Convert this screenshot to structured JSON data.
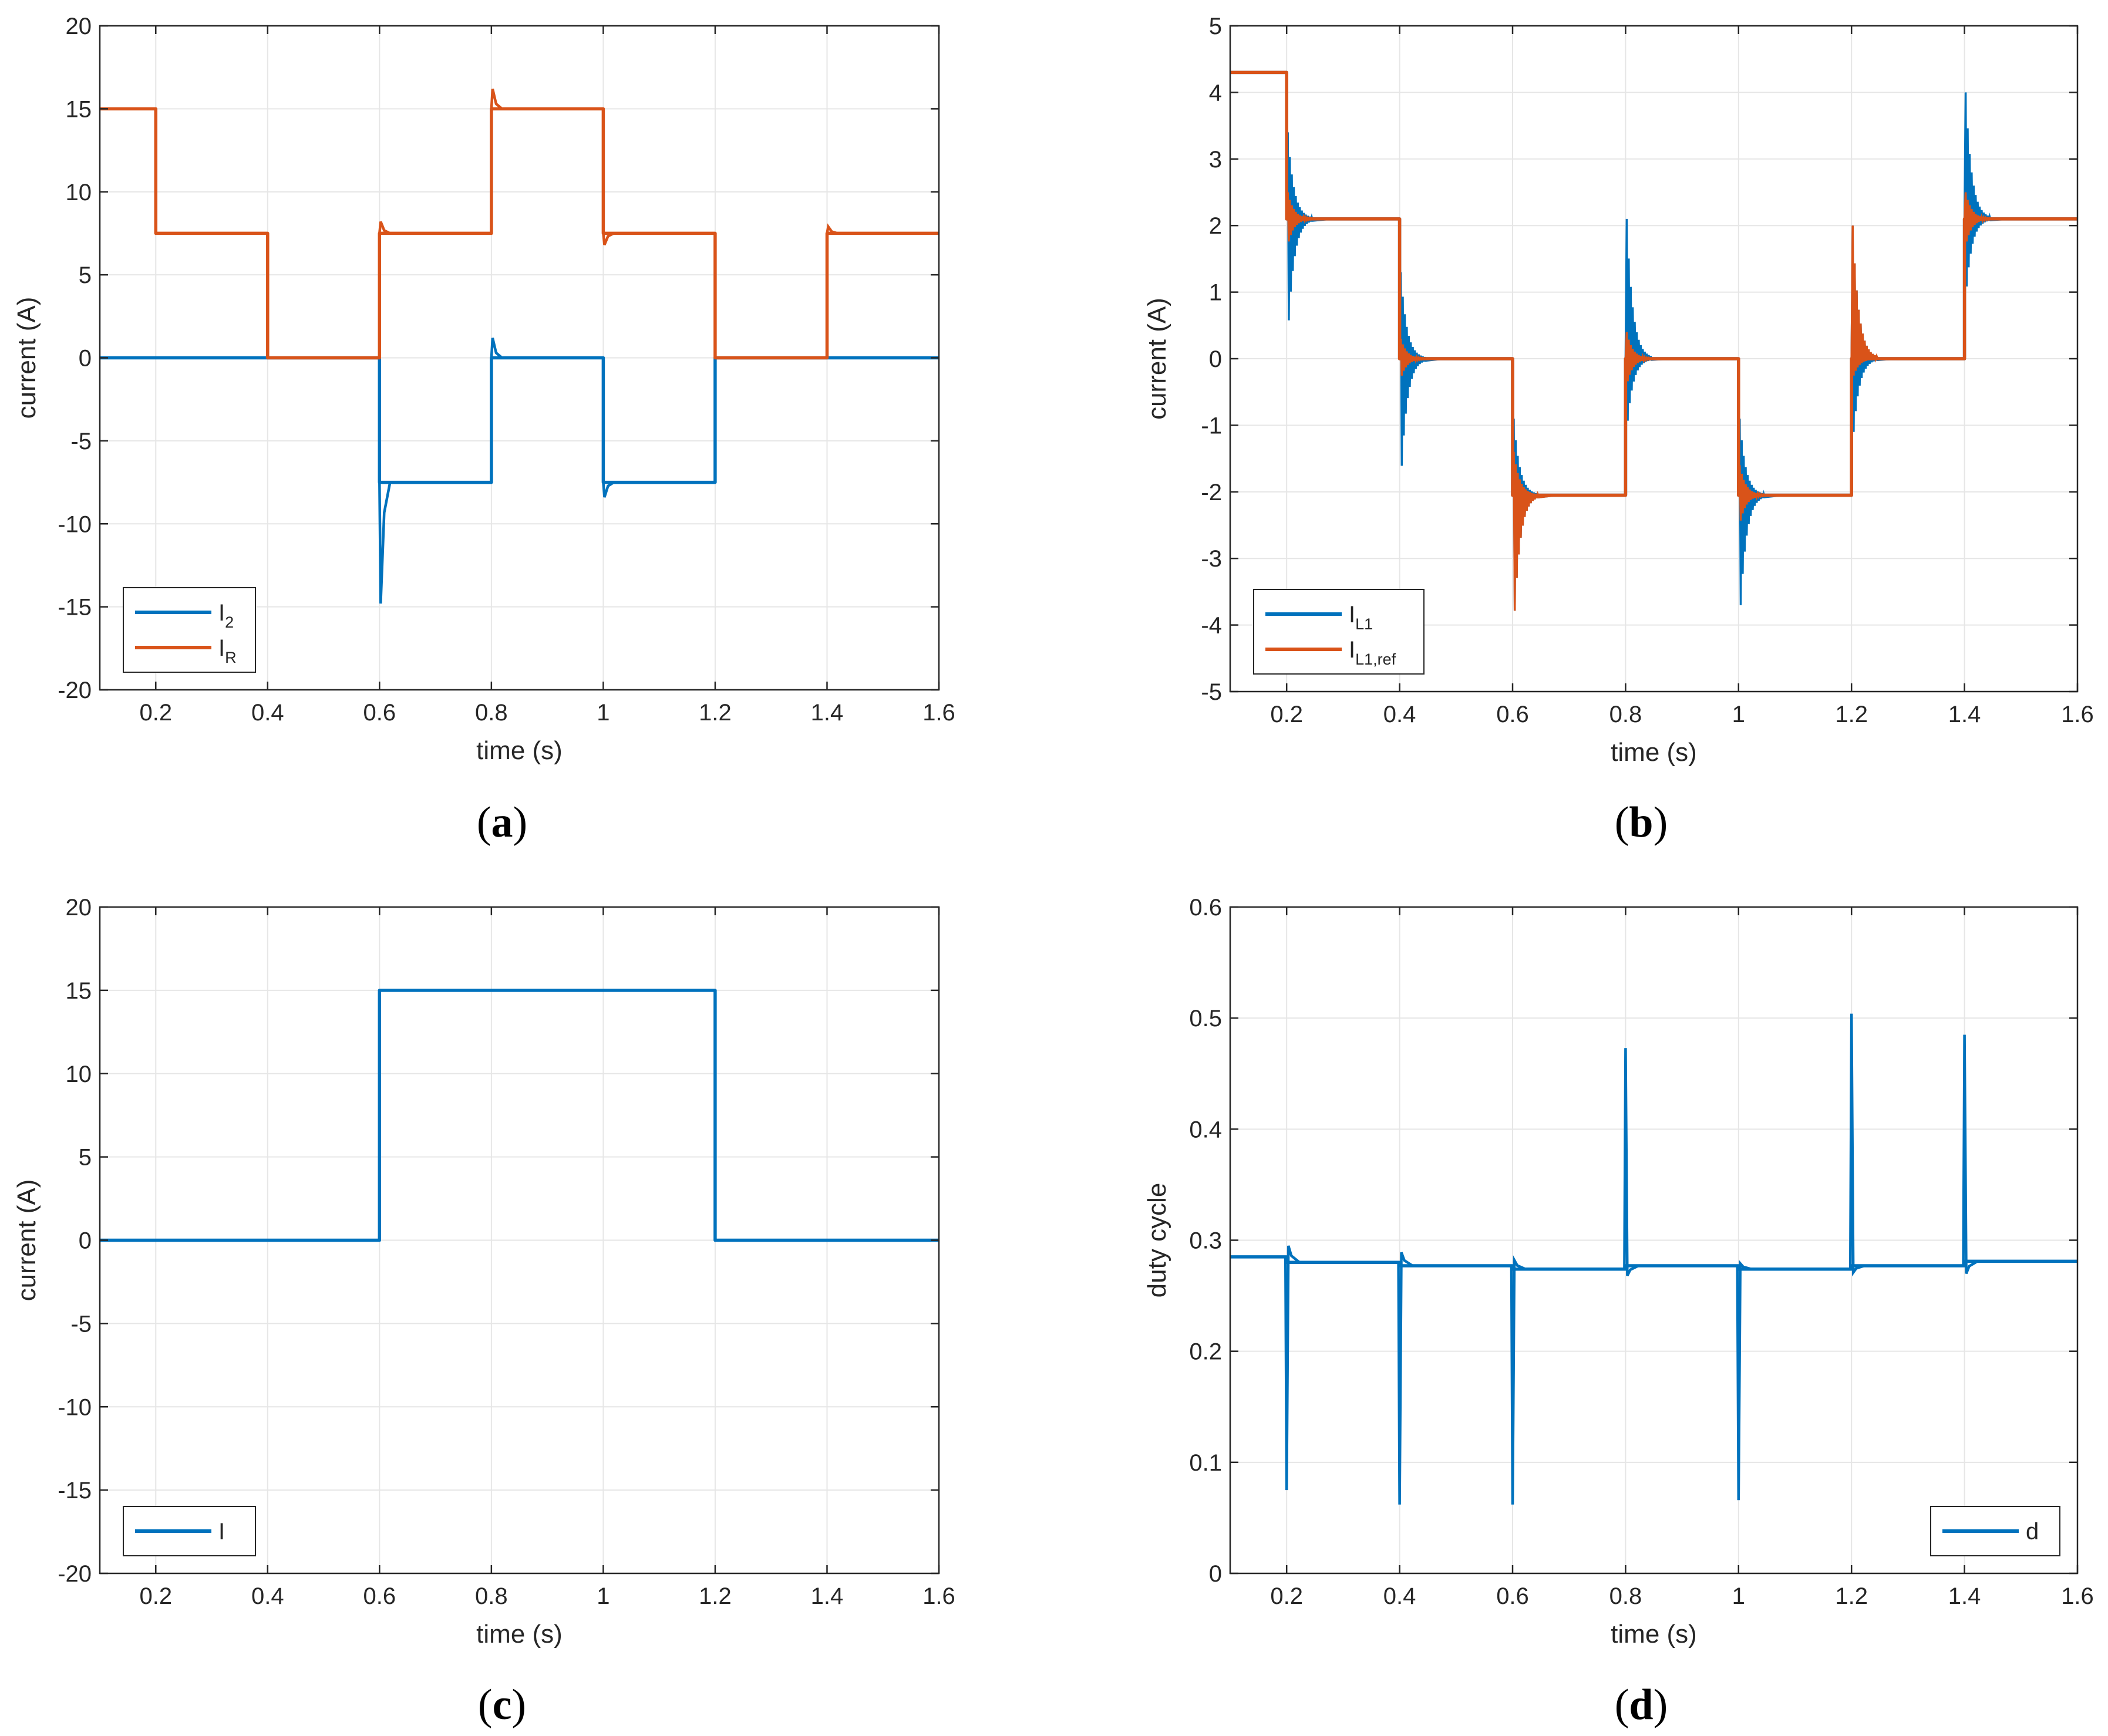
{
  "colors": {
    "blue": "#0072BD",
    "orange": "#D95319",
    "grid": "#e6e6e6",
    "axis": "#262626"
  },
  "chart_data": [
    {
      "id": "a",
      "type": "line",
      "caption_letter": "a",
      "xlabel": "time (s)",
      "ylabel": "current (A)",
      "xlim": [
        0.1,
        1.6
      ],
      "ylim": [
        -20,
        20
      ],
      "xticks": [
        0.2,
        0.4,
        0.6,
        0.8,
        1,
        1.2,
        1.4,
        1.6
      ],
      "xtick_labels": [
        "0.2",
        "0.4",
        "0.6",
        "0.8",
        "1",
        "1.2",
        "1.4",
        "1.6"
      ],
      "yticks": [
        -20,
        -15,
        -10,
        -5,
        0,
        5,
        10,
        15,
        20
      ],
      "ytick_labels": [
        "-20",
        "-15",
        "-10",
        "-5",
        "0",
        "5",
        "10",
        "15",
        "20"
      ],
      "grid": true,
      "legend_position": "bottom-left",
      "series": [
        {
          "name": "I2",
          "legend_main": "I",
          "legend_sub": "2",
          "color": "#0072BD",
          "steps": [
            [
              0.1,
              0
            ],
            [
              0.6,
              -7.5
            ],
            [
              0.8,
              0
            ],
            [
              1.0,
              -7.5
            ],
            [
              1.2,
              0
            ]
          ],
          "spikes": [
            [
              0.6,
              -14.8
            ],
            [
              0.8,
              1.2
            ],
            [
              1.0,
              -8.4
            ]
          ]
        },
        {
          "name": "IR",
          "legend_main": "I",
          "legend_sub": "R",
          "color": "#D95319",
          "steps": [
            [
              0.1,
              15
            ],
            [
              0.2,
              7.5
            ],
            [
              0.4,
              0
            ],
            [
              0.6,
              7.5
            ],
            [
              0.8,
              15
            ],
            [
              1.0,
              7.5
            ],
            [
              1.2,
              0
            ],
            [
              1.4,
              7.5
            ]
          ],
          "spikes": [
            [
              0.6,
              8.2
            ],
            [
              0.8,
              16.2
            ],
            [
              1.0,
              6.8
            ],
            [
              1.4,
              7.9
            ]
          ]
        }
      ]
    },
    {
      "id": "b",
      "type": "line",
      "caption_letter": "b",
      "xlabel": "time (s)",
      "ylabel": "current (A)",
      "xlim": [
        0.1,
        1.6
      ],
      "ylim": [
        -5,
        5
      ],
      "xticks": [
        0.2,
        0.4,
        0.6,
        0.8,
        1,
        1.2,
        1.4,
        1.6
      ],
      "xtick_labels": [
        "0.2",
        "0.4",
        "0.6",
        "0.8",
        "1",
        "1.2",
        "1.4",
        "1.6"
      ],
      "yticks": [
        -5,
        -4,
        -3,
        -2,
        -1,
        0,
        1,
        2,
        3,
        4,
        5
      ],
      "ytick_labels": [
        "-5",
        "-4",
        "-3",
        "-2",
        "-1",
        "0",
        "1",
        "2",
        "3",
        "4",
        "5"
      ],
      "grid": true,
      "legend_position": "bottom-left",
      "series": [
        {
          "name": "IL1",
          "legend_main": "I",
          "legend_sub": "L1",
          "color": "#0072BD",
          "steps": [
            [
              0.1,
              4.3
            ],
            [
              0.2,
              2.1
            ],
            [
              0.4,
              0
            ],
            [
              0.6,
              -2.05
            ],
            [
              0.8,
              0
            ],
            [
              1.0,
              -2.05
            ],
            [
              1.2,
              0
            ],
            [
              1.4,
              2.1
            ]
          ],
          "osc": [
            [
              0.2,
              3.4,
              0.3
            ],
            [
              0.4,
              1.3,
              -1.9
            ],
            [
              0.6,
              -0.9,
              -4.1
            ],
            [
              0.8,
              2.1,
              -1.1
            ],
            [
              1.0,
              -0.9,
              -4.0
            ],
            [
              1.2,
              2.0,
              -1.3
            ],
            [
              1.4,
              4.0,
              0.9
            ]
          ]
        },
        {
          "name": "IL1,ref",
          "legend_main": "I",
          "legend_sub": "L1,ref",
          "color": "#D95319",
          "steps": [
            [
              0.1,
              4.3
            ],
            [
              0.2,
              2.1
            ],
            [
              0.4,
              0
            ],
            [
              0.6,
              -2.05
            ],
            [
              0.8,
              0
            ],
            [
              1.0,
              -2.05
            ],
            [
              1.2,
              0
            ],
            [
              1.4,
              2.1
            ]
          ],
          "osc": [
            [
              0.2,
              2.5,
              1.7
            ],
            [
              0.4,
              0.3,
              -0.3
            ],
            [
              0.6,
              -1.4,
              -4.1
            ],
            [
              0.8,
              0.4,
              -0.4
            ],
            [
              1.0,
              -1.6,
              -2.5
            ],
            [
              1.2,
              2.0,
              -0.3
            ],
            [
              1.4,
              2.5,
              1.7
            ]
          ]
        }
      ]
    },
    {
      "id": "c",
      "type": "line",
      "caption_letter": "c",
      "xlabel": "time (s)",
      "ylabel": "current (A)",
      "xlim": [
        0.1,
        1.6
      ],
      "ylim": [
        -20,
        20
      ],
      "xticks": [
        0.2,
        0.4,
        0.6,
        0.8,
        1,
        1.2,
        1.4,
        1.6
      ],
      "xtick_labels": [
        "0.2",
        "0.4",
        "0.6",
        "0.8",
        "1",
        "1.2",
        "1.4",
        "1.6"
      ],
      "yticks": [
        -20,
        -15,
        -10,
        -5,
        0,
        5,
        10,
        15,
        20
      ],
      "ytick_labels": [
        "-20",
        "-15",
        "-10",
        "-5",
        "0",
        "5",
        "10",
        "15",
        "20"
      ],
      "grid": true,
      "legend_position": "bottom-left",
      "series": [
        {
          "name": "I",
          "legend_main": "I",
          "legend_sub": "",
          "color": "#0072BD",
          "steps": [
            [
              0.1,
              0
            ],
            [
              0.6,
              15
            ],
            [
              1.2,
              0
            ]
          ],
          "spikes": []
        }
      ]
    },
    {
      "id": "d",
      "type": "line",
      "caption_letter": "d",
      "xlabel": "time (s)",
      "ylabel": "duty cycle",
      "xlim": [
        0.1,
        1.6
      ],
      "ylim": [
        0,
        0.6
      ],
      "xticks": [
        0.2,
        0.4,
        0.6,
        0.8,
        1,
        1.2,
        1.4,
        1.6
      ],
      "xtick_labels": [
        "0.2",
        "0.4",
        "0.6",
        "0.8",
        "1",
        "1.2",
        "1.4",
        "1.6"
      ],
      "yticks": [
        0,
        0.1,
        0.2,
        0.3,
        0.4,
        0.5,
        0.6
      ],
      "ytick_labels": [
        "0",
        "0.1",
        "0.2",
        "0.3",
        "0.4",
        "0.5",
        "0.6"
      ],
      "grid": true,
      "legend_position": "bottom-right",
      "series": [
        {
          "name": "d",
          "legend_main": "d",
          "legend_sub": "",
          "color": "#0072BD",
          "steps": [
            [
              0.1,
              0.285
            ],
            [
              0.2,
              0.28
            ],
            [
              0.4,
              0.277
            ],
            [
              0.6,
              0.274
            ],
            [
              0.8,
              0.277
            ],
            [
              1.0,
              0.274
            ],
            [
              1.2,
              0.277
            ],
            [
              1.4,
              0.281
            ]
          ],
          "dspikes": [
            [
              0.2,
              0.075,
              0.295
            ],
            [
              0.4,
              0.062,
              0.289
            ],
            [
              0.6,
              0.062,
              0.282
            ],
            [
              0.8,
              0.473,
              0.268
            ],
            [
              1.0,
              0.066,
              0.279
            ],
            [
              1.2,
              0.504,
              0.271
            ],
            [
              1.4,
              0.485,
              0.27
            ]
          ]
        }
      ]
    }
  ]
}
